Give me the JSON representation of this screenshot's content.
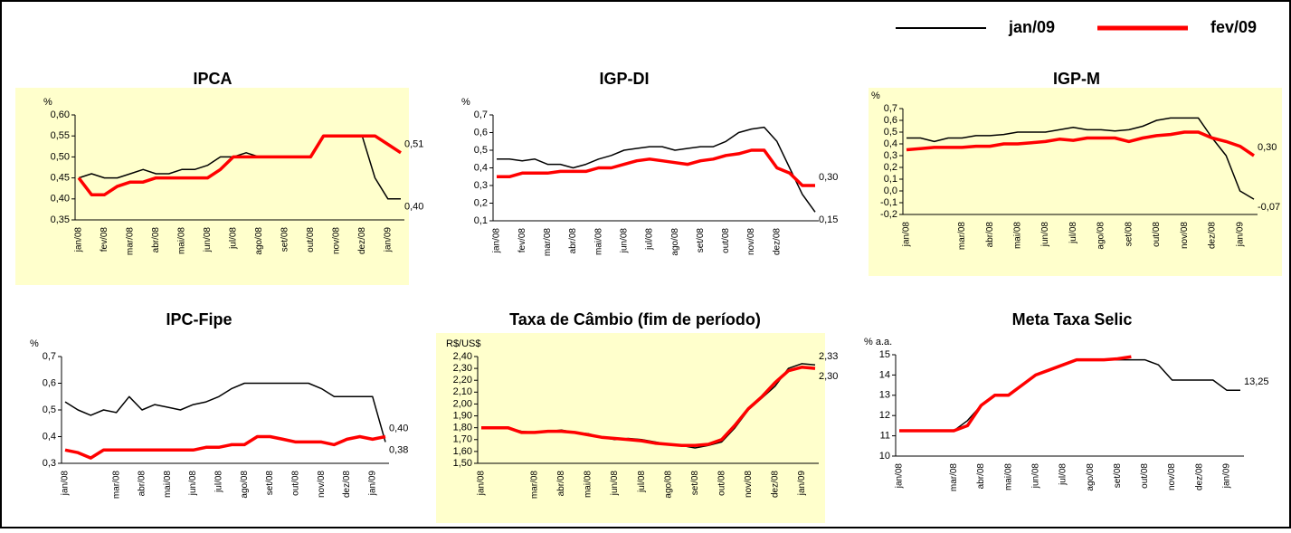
{
  "chart_data": [
    {
      "type": "line",
      "title": "IPCA",
      "y_label": "%",
      "background": "#ffffcc",
      "categories": [
        "jan/08",
        null,
        "fev/08",
        null,
        "mar/08",
        null,
        "abr/08",
        null,
        "mai/08",
        null,
        "jun/08",
        null,
        "jul/08",
        null,
        "ago/08",
        null,
        "set/08",
        null,
        "out/08",
        null,
        "nov/08",
        null,
        "dez/08",
        null,
        "jan/09",
        null
      ],
      "ylim": [
        0.35,
        0.6
      ],
      "yticks": [
        {
          "value": 0.35,
          "label": "0,35"
        },
        {
          "value": 0.4,
          "label": "0,40"
        },
        {
          "value": 0.45,
          "label": "0,45"
        },
        {
          "value": 0.5,
          "label": "0,50"
        },
        {
          "value": 0.55,
          "label": "0,55"
        },
        {
          "value": 0.6,
          "label": "0,60"
        }
      ],
      "series": [
        {
          "name": "jan/09",
          "color": "#000000",
          "values": [
            0.45,
            0.46,
            0.45,
            0.45,
            0.46,
            0.47,
            0.46,
            0.46,
            0.47,
            0.47,
            0.48,
            0.5,
            0.5,
            0.51,
            0.5,
            0.5,
            0.5,
            0.5,
            0.5,
            0.55,
            0.55,
            0.55,
            0.55,
            0.45,
            0.4,
            0.4
          ],
          "value_labels": [
            null,
            null,
            null,
            null,
            null,
            null,
            null,
            null,
            null,
            null,
            null,
            null,
            null,
            null,
            null,
            null,
            null,
            null,
            null,
            null,
            null,
            null,
            null,
            null,
            null,
            "0,40"
          ]
        },
        {
          "name": "fev/09",
          "color": "#ff0000",
          "values": [
            0.45,
            0.41,
            0.41,
            0.43,
            0.44,
            0.44,
            0.45,
            0.45,
            0.45,
            0.45,
            0.45,
            0.47,
            0.5,
            0.5,
            0.5,
            0.5,
            0.5,
            0.5,
            0.5,
            0.55,
            0.55,
            0.55,
            0.55,
            0.55,
            0.53,
            0.51
          ],
          "value_labels": [
            null,
            null,
            null,
            null,
            null,
            null,
            null,
            null,
            null,
            null,
            null,
            null,
            null,
            null,
            null,
            null,
            null,
            null,
            null,
            null,
            null,
            null,
            null,
            null,
            null,
            "0,51"
          ]
        }
      ]
    },
    {
      "type": "line",
      "title": "IGP-DI",
      "y_label": "%",
      "categories": [
        "jan/08",
        null,
        "fev/08",
        null,
        "mar/08",
        null,
        "abr/08",
        null,
        "mai/08",
        null,
        "jun/08",
        null,
        "jul/08",
        null,
        "ago/08",
        null,
        "set/08",
        null,
        "out/08",
        null,
        "nov/08",
        null,
        "dez/08",
        null,
        null,
        null
      ],
      "ylim": [
        0.1,
        0.7
      ],
      "yticks": [
        {
          "value": 0.1,
          "label": "0,1"
        },
        {
          "value": 0.2,
          "label": "0,2"
        },
        {
          "value": 0.3,
          "label": "0,3"
        },
        {
          "value": 0.4,
          "label": "0,4"
        },
        {
          "value": 0.5,
          "label": "0,5"
        },
        {
          "value": 0.6,
          "label": "0,6"
        },
        {
          "value": 0.7,
          "label": "0,7"
        }
      ],
      "series": [
        {
          "name": "jan/09",
          "color": "#000000",
          "values": [
            0.45,
            0.45,
            0.44,
            0.45,
            0.42,
            0.42,
            0.4,
            0.42,
            0.45,
            0.47,
            0.5,
            0.51,
            0.52,
            0.52,
            0.5,
            0.51,
            0.52,
            0.52,
            0.55,
            0.6,
            0.62,
            0.63,
            0.55,
            0.4,
            0.25,
            0.15
          ],
          "value_labels": [
            null,
            null,
            null,
            null,
            null,
            null,
            null,
            null,
            null,
            null,
            null,
            null,
            null,
            null,
            null,
            null,
            null,
            null,
            null,
            null,
            null,
            null,
            null,
            null,
            null,
            "0,15"
          ]
        },
        {
          "name": "fev/09",
          "color": "#ff0000",
          "values": [
            0.35,
            0.35,
            0.37,
            0.37,
            0.37,
            0.38,
            0.38,
            0.38,
            0.4,
            0.4,
            0.42,
            0.44,
            0.45,
            0.44,
            0.43,
            0.42,
            0.44,
            0.45,
            0.47,
            0.48,
            0.5,
            0.5,
            0.4,
            0.37,
            0.3,
            0.3
          ],
          "value_labels": [
            null,
            null,
            null,
            null,
            null,
            null,
            null,
            null,
            null,
            null,
            null,
            null,
            null,
            null,
            null,
            null,
            null,
            null,
            null,
            null,
            null,
            null,
            null,
            null,
            null,
            "0,30"
          ]
        }
      ]
    },
    {
      "type": "line",
      "title": "IGP-M",
      "y_label": "%",
      "background": "#ffffcc",
      "categories": [
        "jan/08",
        null,
        null,
        null,
        "mar/08",
        null,
        "abr/08",
        null,
        "mai/08",
        null,
        "jun/08",
        null,
        "jul/08",
        null,
        "ago/08",
        null,
        "set/08",
        null,
        "out/08",
        null,
        "nov/08",
        null,
        "dez/08",
        null,
        "jan/09",
        null
      ],
      "ylim": [
        -0.2,
        0.7
      ],
      "yticks": [
        {
          "value": -0.2,
          "label": "-0,2"
        },
        {
          "value": -0.1,
          "label": "-0,1"
        },
        {
          "value": 0,
          "label": "0,0"
        },
        {
          "value": 0.1,
          "label": "0,1"
        },
        {
          "value": 0.2,
          "label": "0,2"
        },
        {
          "value": 0.3,
          "label": "0,3"
        },
        {
          "value": 0.4,
          "label": "0,4"
        },
        {
          "value": 0.5,
          "label": "0,5"
        },
        {
          "value": 0.6,
          "label": "0,6"
        },
        {
          "value": 0.7,
          "label": "0,7"
        }
      ],
      "series": [
        {
          "name": "jan/09",
          "color": "#000000",
          "values": [
            0.45,
            0.45,
            0.42,
            0.45,
            0.45,
            0.47,
            0.47,
            0.48,
            0.5,
            0.5,
            0.5,
            0.52,
            0.54,
            0.52,
            0.52,
            0.51,
            0.52,
            0.55,
            0.6,
            0.62,
            0.62,
            0.62,
            0.45,
            0.3,
            0,
            -0.07
          ],
          "value_labels": [
            null,
            null,
            null,
            null,
            null,
            null,
            null,
            null,
            null,
            null,
            null,
            null,
            null,
            null,
            null,
            null,
            null,
            null,
            null,
            null,
            null,
            null,
            null,
            null,
            null,
            "-0,07"
          ]
        },
        {
          "name": "fev/09",
          "color": "#ff0000",
          "values": [
            0.35,
            0.36,
            0.37,
            0.37,
            0.37,
            0.38,
            0.38,
            0.4,
            0.4,
            0.41,
            0.42,
            0.44,
            0.43,
            0.45,
            0.45,
            0.45,
            0.42,
            0.45,
            0.47,
            0.48,
            0.5,
            0.5,
            0.45,
            0.42,
            0.38,
            0.3
          ],
          "value_labels": [
            null,
            null,
            null,
            null,
            null,
            null,
            null,
            null,
            null,
            null,
            null,
            null,
            null,
            null,
            null,
            null,
            null,
            null,
            null,
            null,
            null,
            null,
            null,
            null,
            null,
            "0,30"
          ]
        }
      ]
    },
    {
      "type": "line",
      "title": "IPC-Fipe",
      "y_label": "%",
      "categories": [
        "jan/08",
        null,
        null,
        null,
        "mar/08",
        null,
        "abr/08",
        null,
        "mai/08",
        null,
        "jun/08",
        null,
        "jul/08",
        null,
        "ago/08",
        null,
        "set/08",
        null,
        "out/08",
        null,
        "nov/08",
        null,
        "dez/08",
        null,
        "jan/09",
        null
      ],
      "ylim": [
        0.3,
        0.7
      ],
      "yticks": [
        {
          "value": 0.3,
          "label": "0,3"
        },
        {
          "value": 0.4,
          "label": "0,4"
        },
        {
          "value": 0.5,
          "label": "0,5"
        },
        {
          "value": 0.6,
          "label": "0,6"
        },
        {
          "value": 0.7,
          "label": "0,7"
        }
      ],
      "series": [
        {
          "name": "jan/09",
          "color": "#000000",
          "values": [
            0.53,
            0.5,
            0.48,
            0.5,
            0.49,
            0.55,
            0.5,
            0.52,
            0.51,
            0.5,
            0.52,
            0.53,
            0.55,
            0.58,
            0.6,
            0.6,
            0.6,
            0.6,
            0.6,
            0.6,
            0.58,
            0.55,
            0.55,
            0.55,
            0.55,
            0.38
          ],
          "value_labels": [
            null,
            null,
            null,
            null,
            null,
            null,
            null,
            null,
            null,
            null,
            null,
            null,
            null,
            null,
            null,
            null,
            null,
            null,
            null,
            null,
            null,
            null,
            null,
            null,
            null,
            "0,38"
          ]
        },
        {
          "name": "fev/09",
          "color": "#ff0000",
          "values": [
            0.35,
            0.34,
            0.32,
            0.35,
            0.35,
            0.35,
            0.35,
            0.35,
            0.35,
            0.35,
            0.35,
            0.36,
            0.36,
            0.37,
            0.37,
            0.4,
            0.4,
            0.39,
            0.38,
            0.38,
            0.38,
            0.37,
            0.39,
            0.4,
            0.39,
            0.4
          ],
          "value_labels": [
            null,
            null,
            null,
            null,
            null,
            null,
            null,
            null,
            null,
            null,
            null,
            null,
            null,
            null,
            null,
            null,
            null,
            null,
            null,
            null,
            null,
            null,
            null,
            null,
            null,
            "0,40"
          ]
        }
      ]
    },
    {
      "type": "line",
      "title": "Taxa de Câmbio (fim de período)",
      "y_label": "R$/US$",
      "background": "#ffffcc",
      "categories": [
        "jan/08",
        null,
        null,
        null,
        "mar/08",
        null,
        "abr/08",
        null,
        "mai/08",
        null,
        "jun/08",
        null,
        "jul/08",
        null,
        "ago/08",
        null,
        "set/08",
        null,
        "out/08",
        null,
        "nov/08",
        null,
        "dez/08",
        null,
        "jan/09",
        null
      ],
      "ylim": [
        1.5,
        2.4
      ],
      "yticks": [
        {
          "value": 1.5,
          "label": "1,50"
        },
        {
          "value": 1.6,
          "label": "1,60"
        },
        {
          "value": 1.7,
          "label": "1,70"
        },
        {
          "value": 1.8,
          "label": "1,80"
        },
        {
          "value": 1.9,
          "label": "1,90"
        },
        {
          "value": 2.0,
          "label": "2,00"
        },
        {
          "value": 2.1,
          "label": "2,10"
        },
        {
          "value": 2.2,
          "label": "2,20"
        },
        {
          "value": 2.3,
          "label": "2,30"
        },
        {
          "value": 2.4,
          "label": "2,40"
        }
      ],
      "series": [
        {
          "name": "jan/09",
          "color": "#000000",
          "values": [
            1.8,
            1.8,
            1.8,
            1.77,
            1.76,
            1.77,
            1.78,
            1.76,
            1.75,
            1.72,
            1.7,
            1.71,
            1.7,
            1.68,
            1.66,
            1.65,
            1.63,
            1.65,
            1.68,
            1.8,
            1.95,
            2.05,
            2.15,
            2.3,
            2.34,
            2.33
          ],
          "value_labels": [
            null,
            null,
            null,
            null,
            null,
            null,
            null,
            null,
            null,
            null,
            null,
            null,
            null,
            null,
            null,
            null,
            null,
            null,
            null,
            null,
            null,
            null,
            null,
            null,
            null,
            "2,33"
          ]
        },
        {
          "name": "fev/09",
          "color": "#ff0000",
          "values": [
            1.8,
            1.8,
            1.8,
            1.76,
            1.76,
            1.77,
            1.77,
            1.76,
            1.74,
            1.72,
            1.71,
            1.7,
            1.69,
            1.67,
            1.66,
            1.65,
            1.65,
            1.66,
            1.7,
            1.82,
            1.96,
            2.06,
            2.18,
            2.28,
            2.31,
            2.3
          ],
          "value_labels": [
            null,
            null,
            null,
            null,
            null,
            null,
            null,
            null,
            null,
            null,
            null,
            null,
            null,
            null,
            null,
            null,
            null,
            null,
            null,
            null,
            null,
            null,
            null,
            null,
            null,
            "2,30"
          ]
        }
      ]
    },
    {
      "type": "line",
      "title": "Meta Taxa Selic",
      "y_label": "% a.a.",
      "categories": [
        "jan/08",
        null,
        null,
        null,
        "mar/08",
        null,
        "abr/08",
        null,
        "mai/08",
        null,
        "jun/08",
        null,
        "jul/08",
        null,
        "ago/08",
        null,
        "set/08",
        null,
        "out/08",
        null,
        "nov/08",
        null,
        "dez/08",
        null,
        "jan/09",
        null
      ],
      "ylim": [
        10,
        15
      ],
      "yticks": [
        10,
        11,
        12,
        13,
        14,
        15
      ],
      "series": [
        {
          "name": "jan/09",
          "color": "#000000",
          "values": [
            11.25,
            11.25,
            11.25,
            11.25,
            11.25,
            11.75,
            12.5,
            13,
            13,
            13.5,
            14,
            14.25,
            14.5,
            14.75,
            14.75,
            14.75,
            14.75,
            14.75,
            14.75,
            14.5,
            13.75,
            13.75,
            13.75,
            13.75,
            13.25,
            13.25
          ],
          "value_labels": [
            null,
            null,
            null,
            null,
            null,
            null,
            null,
            null,
            null,
            null,
            null,
            null,
            null,
            null,
            null,
            null,
            null,
            null,
            null,
            null,
            null,
            null,
            null,
            null,
            null,
            "13,25"
          ]
        },
        {
          "name": "fev/09",
          "color": "#ff0000",
          "values": [
            11.25,
            11.25,
            11.25,
            11.25,
            11.25,
            11.5,
            12.5,
            13,
            13,
            13.5,
            14,
            14.25,
            14.5,
            14.75,
            14.75,
            14.75,
            14.8,
            14.9,
            null,
            null,
            null,
            null,
            null,
            null,
            null,
            null
          ]
        }
      ]
    }
  ]
}
